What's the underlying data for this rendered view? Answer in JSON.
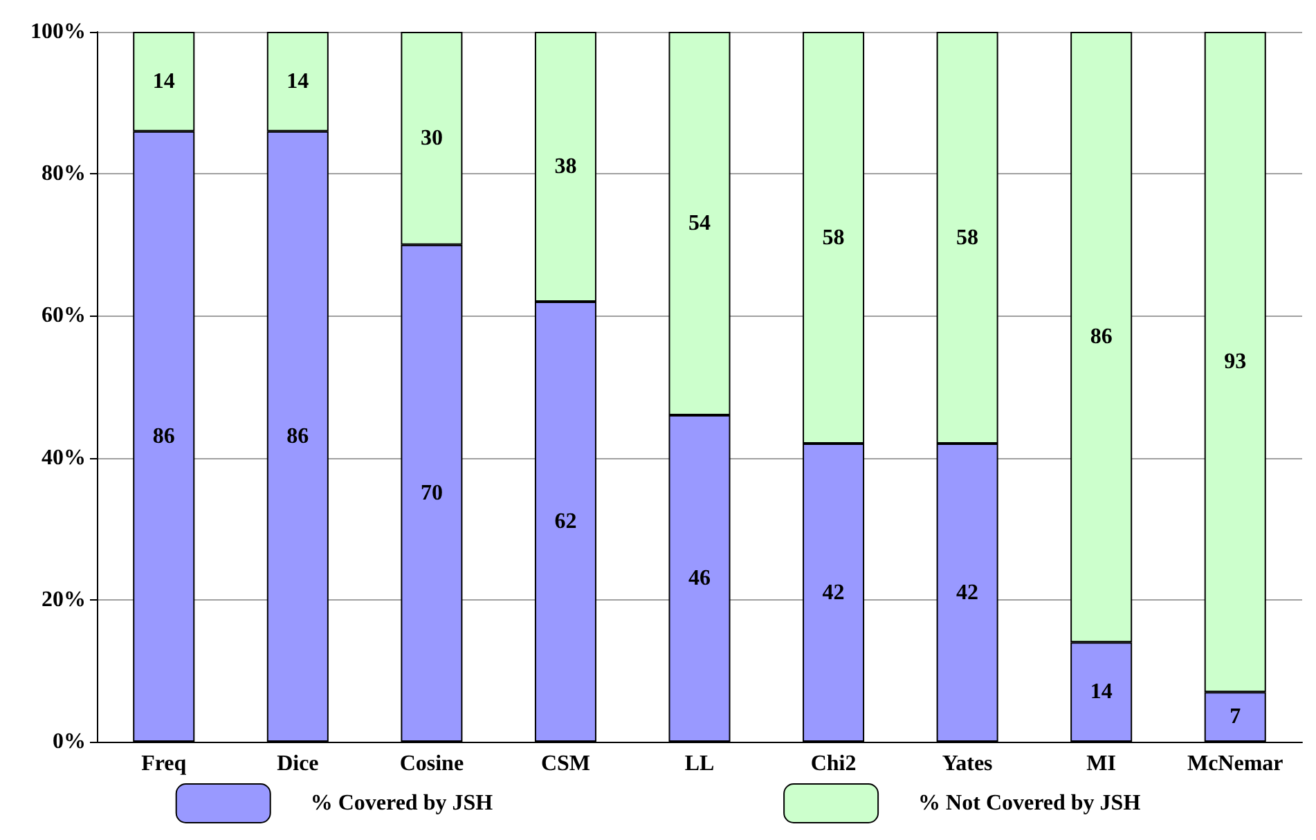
{
  "chart_data": {
    "type": "bar",
    "stacked": true,
    "categories": [
      "Freq",
      "Dice",
      "Cosine",
      "CSM",
      "LL",
      "Chi2",
      "Yates",
      "MI",
      "McNemar"
    ],
    "series": [
      {
        "name": "% Covered by JSH",
        "color": "#9999ff",
        "values": [
          86,
          86,
          70,
          62,
          46,
          42,
          42,
          14,
          7
        ]
      },
      {
        "name": "% Not Covered by JSH",
        "color": "#ccffcc",
        "values": [
          14,
          14,
          30,
          38,
          54,
          58,
          58,
          86,
          93
        ]
      }
    ],
    "ylim": [
      0,
      100
    ],
    "yticks": [
      {
        "value": 0,
        "label": "0%"
      },
      {
        "value": 20,
        "label": "20%"
      },
      {
        "value": 40,
        "label": "40%"
      },
      {
        "value": 60,
        "label": "60%"
      },
      {
        "value": 80,
        "label": "80%"
      },
      {
        "value": 100,
        "label": "100%"
      }
    ],
    "grid": "y",
    "legend": "bottom",
    "data_labels": true
  }
}
